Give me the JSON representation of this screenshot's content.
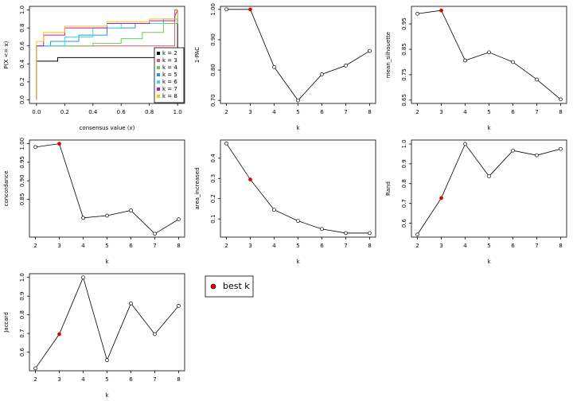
{
  "chart_data": [
    {
      "type": "step",
      "xlabel": "consensus value (x)",
      "ylabel": "P(X <= x)",
      "xlim": [
        -0.05,
        1.05
      ],
      "ylim": [
        -0.04,
        1.04
      ],
      "xticks": [
        {
          "value": 0,
          "label": "0.0"
        },
        0.2,
        0.4,
        0.6,
        0.8,
        {
          "value": 1,
          "label": "1.0"
        }
      ],
      "yticks": [
        {
          "value": 0,
          "label": "0.0"
        },
        0.2,
        0.4,
        0.6,
        0.8,
        {
          "value": 1,
          "label": "1.0"
        }
      ],
      "legend_position": "bottomright",
      "series": [
        {
          "name": "k = 2",
          "color": "#000000",
          "x": [
            0,
            0,
            0.15,
            0.15,
            1,
            1
          ],
          "values": [
            0,
            0.43,
            0.43,
            0.47,
            0.47,
            1
          ]
        },
        {
          "name": "k = 3",
          "color": "#DF536B",
          "x": [
            0,
            0,
            0.98,
            0.98,
            1
          ],
          "values": [
            0,
            0.6,
            0.6,
            1,
            1
          ]
        },
        {
          "name": "k = 4",
          "color": "#61D04F",
          "x": [
            0,
            0,
            0.4,
            0.4,
            0.6,
            0.6,
            0.75,
            0.75,
            0.9,
            0.9,
            1,
            1
          ],
          "values": [
            0,
            0.6,
            0.6,
            0.63,
            0.63,
            0.68,
            0.68,
            0.75,
            0.75,
            0.85,
            0.85,
            1
          ]
        },
        {
          "name": "k = 5",
          "color": "#2297E6",
          "x": [
            0,
            0,
            0.1,
            0.1,
            0.3,
            0.3,
            0.5,
            0.5,
            0.7,
            0.7,
            0.9,
            0.9,
            1,
            1
          ],
          "values": [
            0,
            0.6,
            0.6,
            0.65,
            0.65,
            0.72,
            0.72,
            0.8,
            0.8,
            0.85,
            0.85,
            0.9,
            0.9,
            1
          ]
        },
        {
          "name": "k = 6",
          "color": "#28E2E5",
          "x": [
            0,
            0,
            0.2,
            0.2,
            0.4,
            0.4,
            0.6,
            0.6,
            0.9,
            0.9,
            1,
            1
          ],
          "values": [
            0,
            0.6,
            0.6,
            0.7,
            0.7,
            0.8,
            0.8,
            0.85,
            0.85,
            0.9,
            0.9,
            1
          ]
        },
        {
          "name": "k = 7",
          "color": "#CD0BBC",
          "x": [
            0,
            0,
            0.05,
            0.05,
            0.2,
            0.2,
            0.5,
            0.5,
            0.8,
            0.8,
            0.98,
            0.98,
            1
          ],
          "values": [
            0,
            0.6,
            0.6,
            0.72,
            0.72,
            0.8,
            0.8,
            0.85,
            0.85,
            0.88,
            0.88,
            0.93,
            1
          ]
        },
        {
          "name": "k = 8",
          "color": "#F5C710",
          "x": [
            0,
            0,
            0.05,
            0.05,
            0.2,
            0.2,
            0.5,
            0.5,
            0.8,
            0.8,
            1,
            1
          ],
          "values": [
            0,
            0.65,
            0.65,
            0.75,
            0.75,
            0.82,
            0.82,
            0.87,
            0.87,
            0.9,
            0.9,
            1
          ]
        }
      ]
    },
    {
      "type": "line",
      "xlabel": "k",
      "ylabel": "1-PAC",
      "x": [
        2,
        3,
        4,
        5,
        6,
        7,
        8
      ],
      "values": [
        1.0,
        1.0,
        0.81,
        0.7,
        0.786,
        0.815,
        0.863
      ],
      "xlim": [
        1.75,
        8.25
      ],
      "ylim": [
        0.69,
        1.01
      ],
      "xticks": [
        2,
        3,
        4,
        5,
        6,
        7,
        8
      ],
      "yticks": [
        {
          "value": 0.7,
          "label": "0.70"
        },
        {
          "value": 0.8,
          "label": "0.80"
        },
        {
          "value": 0.9,
          "label": "0.90"
        },
        {
          "value": 1,
          "label": "1.00"
        }
      ],
      "highlight_x": 3
    },
    {
      "type": "line",
      "xlabel": "k",
      "ylabel": "mean_silhouette",
      "x": [
        2,
        3,
        4,
        5,
        6,
        7,
        8
      ],
      "values": [
        0.99,
        1.003,
        0.806,
        0.838,
        0.8,
        0.731,
        0.653
      ],
      "xlim": [
        1.75,
        8.25
      ],
      "ylim": [
        0.637,
        1.019
      ],
      "xticks": [
        2,
        3,
        4,
        5,
        6,
        7,
        8
      ],
      "yticks": [
        0.65,
        0.75,
        0.85,
        0.95
      ],
      "highlight_x": 3
    },
    {
      "type": "line",
      "xlabel": "k",
      "ylabel": "concordance",
      "x": [
        2,
        3,
        4,
        5,
        6,
        7,
        8
      ],
      "values": [
        0.991,
        1.0,
        0.8,
        0.806,
        0.82,
        0.757,
        0.796
      ],
      "xlim": [
        1.75,
        8.25
      ],
      "ylim": [
        0.748,
        1.01
      ],
      "xticks": [
        2,
        3,
        4,
        5,
        6,
        7,
        8
      ],
      "yticks": [
        0.85,
        {
          "value": 0.9,
          "label": "0.90"
        },
        0.95,
        {
          "value": 1,
          "label": "1.00"
        }
      ],
      "highlight_x": 3
    },
    {
      "type": "line",
      "xlabel": "k",
      "ylabel": "area_increased",
      "x": [
        2,
        3,
        4,
        5,
        6,
        7,
        8
      ],
      "values": [
        0.473,
        0.295,
        0.145,
        0.09,
        0.05,
        0.03,
        0.03
      ],
      "xlim": [
        1.75,
        8.25
      ],
      "ylim": [
        0.01,
        0.49
      ],
      "xticks": [
        2,
        3,
        4,
        5,
        6,
        7,
        8
      ],
      "yticks": [
        0.1,
        0.2,
        0.3,
        0.4
      ],
      "highlight_x": 3
    },
    {
      "type": "line",
      "xlabel": "k",
      "ylabel": "Rand",
      "x": [
        2,
        3,
        4,
        5,
        6,
        7,
        8
      ],
      "values": [
        0.543,
        0.727,
        1.0,
        0.837,
        0.967,
        0.943,
        0.975
      ],
      "xlim": [
        1.75,
        8.25
      ],
      "ylim": [
        0.53,
        1.02
      ],
      "xticks": [
        2,
        3,
        4,
        5,
        6,
        7,
        8
      ],
      "yticks": [
        0.6,
        0.7,
        0.8,
        0.9,
        {
          "value": 1,
          "label": "1.0"
        }
      ],
      "highlight_x": 3
    },
    {
      "type": "line",
      "xlabel": "k",
      "ylabel": "Jaccard",
      "x": [
        2,
        3,
        4,
        5,
        6,
        7,
        8
      ],
      "values": [
        0.513,
        0.696,
        1.0,
        0.557,
        0.861,
        0.696,
        0.848
      ],
      "xlim": [
        1.75,
        8.25
      ],
      "ylim": [
        0.5,
        1.02
      ],
      "xticks": [
        2,
        3,
        4,
        5,
        6,
        7,
        8
      ],
      "yticks": [
        0.6,
        0.7,
        0.8,
        0.9,
        {
          "value": 1,
          "label": "1.0"
        }
      ],
      "highlight_x": 3
    }
  ],
  "highlight": {
    "label": "best k",
    "color": "#e00000"
  }
}
